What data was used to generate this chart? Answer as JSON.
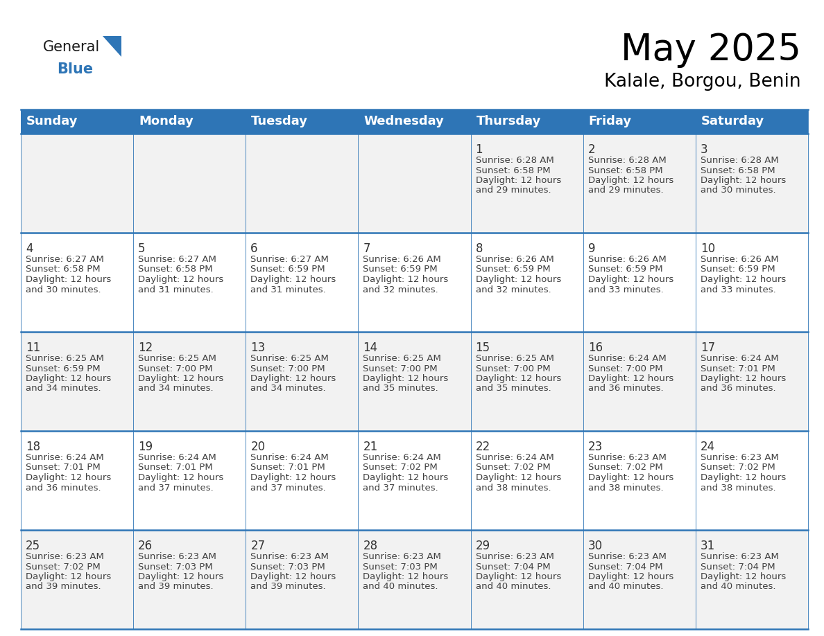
{
  "title": "May 2025",
  "subtitle": "Kalale, Borgou, Benin",
  "header_bg": "#2E75B6",
  "header_text_color": "#FFFFFF",
  "weekdays": [
    "Sunday",
    "Monday",
    "Tuesday",
    "Wednesday",
    "Thursday",
    "Friday",
    "Saturday"
  ],
  "row_bg_odd": "#F2F2F2",
  "row_bg_even": "#FFFFFF",
  "cell_text_color": "#404040",
  "day_num_color": "#333333",
  "grid_line_color": "#2E75B6",
  "separator_color": "#2E75B6",
  "calendar": [
    [
      null,
      null,
      null,
      null,
      {
        "day": 1,
        "sunrise": "6:28 AM",
        "sunset": "6:58 PM",
        "daylight": "12 hours",
        "daylight2": "and 29 minutes."
      },
      {
        "day": 2,
        "sunrise": "6:28 AM",
        "sunset": "6:58 PM",
        "daylight": "12 hours",
        "daylight2": "and 29 minutes."
      },
      {
        "day": 3,
        "sunrise": "6:28 AM",
        "sunset": "6:58 PM",
        "daylight": "12 hours",
        "daylight2": "and 30 minutes."
      }
    ],
    [
      {
        "day": 4,
        "sunrise": "6:27 AM",
        "sunset": "6:58 PM",
        "daylight": "12 hours",
        "daylight2": "and 30 minutes."
      },
      {
        "day": 5,
        "sunrise": "6:27 AM",
        "sunset": "6:58 PM",
        "daylight": "12 hours",
        "daylight2": "and 31 minutes."
      },
      {
        "day": 6,
        "sunrise": "6:27 AM",
        "sunset": "6:59 PM",
        "daylight": "12 hours",
        "daylight2": "and 31 minutes."
      },
      {
        "day": 7,
        "sunrise": "6:26 AM",
        "sunset": "6:59 PM",
        "daylight": "12 hours",
        "daylight2": "and 32 minutes."
      },
      {
        "day": 8,
        "sunrise": "6:26 AM",
        "sunset": "6:59 PM",
        "daylight": "12 hours",
        "daylight2": "and 32 minutes."
      },
      {
        "day": 9,
        "sunrise": "6:26 AM",
        "sunset": "6:59 PM",
        "daylight": "12 hours",
        "daylight2": "and 33 minutes."
      },
      {
        "day": 10,
        "sunrise": "6:26 AM",
        "sunset": "6:59 PM",
        "daylight": "12 hours",
        "daylight2": "and 33 minutes."
      }
    ],
    [
      {
        "day": 11,
        "sunrise": "6:25 AM",
        "sunset": "6:59 PM",
        "daylight": "12 hours",
        "daylight2": "and 34 minutes."
      },
      {
        "day": 12,
        "sunrise": "6:25 AM",
        "sunset": "7:00 PM",
        "daylight": "12 hours",
        "daylight2": "and 34 minutes."
      },
      {
        "day": 13,
        "sunrise": "6:25 AM",
        "sunset": "7:00 PM",
        "daylight": "12 hours",
        "daylight2": "and 34 minutes."
      },
      {
        "day": 14,
        "sunrise": "6:25 AM",
        "sunset": "7:00 PM",
        "daylight": "12 hours",
        "daylight2": "and 35 minutes."
      },
      {
        "day": 15,
        "sunrise": "6:25 AM",
        "sunset": "7:00 PM",
        "daylight": "12 hours",
        "daylight2": "and 35 minutes."
      },
      {
        "day": 16,
        "sunrise": "6:24 AM",
        "sunset": "7:00 PM",
        "daylight": "12 hours",
        "daylight2": "and 36 minutes."
      },
      {
        "day": 17,
        "sunrise": "6:24 AM",
        "sunset": "7:01 PM",
        "daylight": "12 hours",
        "daylight2": "and 36 minutes."
      }
    ],
    [
      {
        "day": 18,
        "sunrise": "6:24 AM",
        "sunset": "7:01 PM",
        "daylight": "12 hours",
        "daylight2": "and 36 minutes."
      },
      {
        "day": 19,
        "sunrise": "6:24 AM",
        "sunset": "7:01 PM",
        "daylight": "12 hours",
        "daylight2": "and 37 minutes."
      },
      {
        "day": 20,
        "sunrise": "6:24 AM",
        "sunset": "7:01 PM",
        "daylight": "12 hours",
        "daylight2": "and 37 minutes."
      },
      {
        "day": 21,
        "sunrise": "6:24 AM",
        "sunset": "7:02 PM",
        "daylight": "12 hours",
        "daylight2": "and 37 minutes."
      },
      {
        "day": 22,
        "sunrise": "6:24 AM",
        "sunset": "7:02 PM",
        "daylight": "12 hours",
        "daylight2": "and 38 minutes."
      },
      {
        "day": 23,
        "sunrise": "6:23 AM",
        "sunset": "7:02 PM",
        "daylight": "12 hours",
        "daylight2": "and 38 minutes."
      },
      {
        "day": 24,
        "sunrise": "6:23 AM",
        "sunset": "7:02 PM",
        "daylight": "12 hours",
        "daylight2": "and 38 minutes."
      }
    ],
    [
      {
        "day": 25,
        "sunrise": "6:23 AM",
        "sunset": "7:02 PM",
        "daylight": "12 hours",
        "daylight2": "and 39 minutes."
      },
      {
        "day": 26,
        "sunrise": "6:23 AM",
        "sunset": "7:03 PM",
        "daylight": "12 hours",
        "daylight2": "and 39 minutes."
      },
      {
        "day": 27,
        "sunrise": "6:23 AM",
        "sunset": "7:03 PM",
        "daylight": "12 hours",
        "daylight2": "and 39 minutes."
      },
      {
        "day": 28,
        "sunrise": "6:23 AM",
        "sunset": "7:03 PM",
        "daylight": "12 hours",
        "daylight2": "and 40 minutes."
      },
      {
        "day": 29,
        "sunrise": "6:23 AM",
        "sunset": "7:04 PM",
        "daylight": "12 hours",
        "daylight2": "and 40 minutes."
      },
      {
        "day": 30,
        "sunrise": "6:23 AM",
        "sunset": "7:04 PM",
        "daylight": "12 hours",
        "daylight2": "and 40 minutes."
      },
      {
        "day": 31,
        "sunrise": "6:23 AM",
        "sunset": "7:04 PM",
        "daylight": "12 hours",
        "daylight2": "and 40 minutes."
      }
    ]
  ],
  "logo_general_color": "#1a1a1a",
  "logo_blue_color": "#2E75B6",
  "title_fontsize": 38,
  "subtitle_fontsize": 19,
  "header_fontsize": 13,
  "day_num_fontsize": 12,
  "cell_fontsize": 9.5
}
